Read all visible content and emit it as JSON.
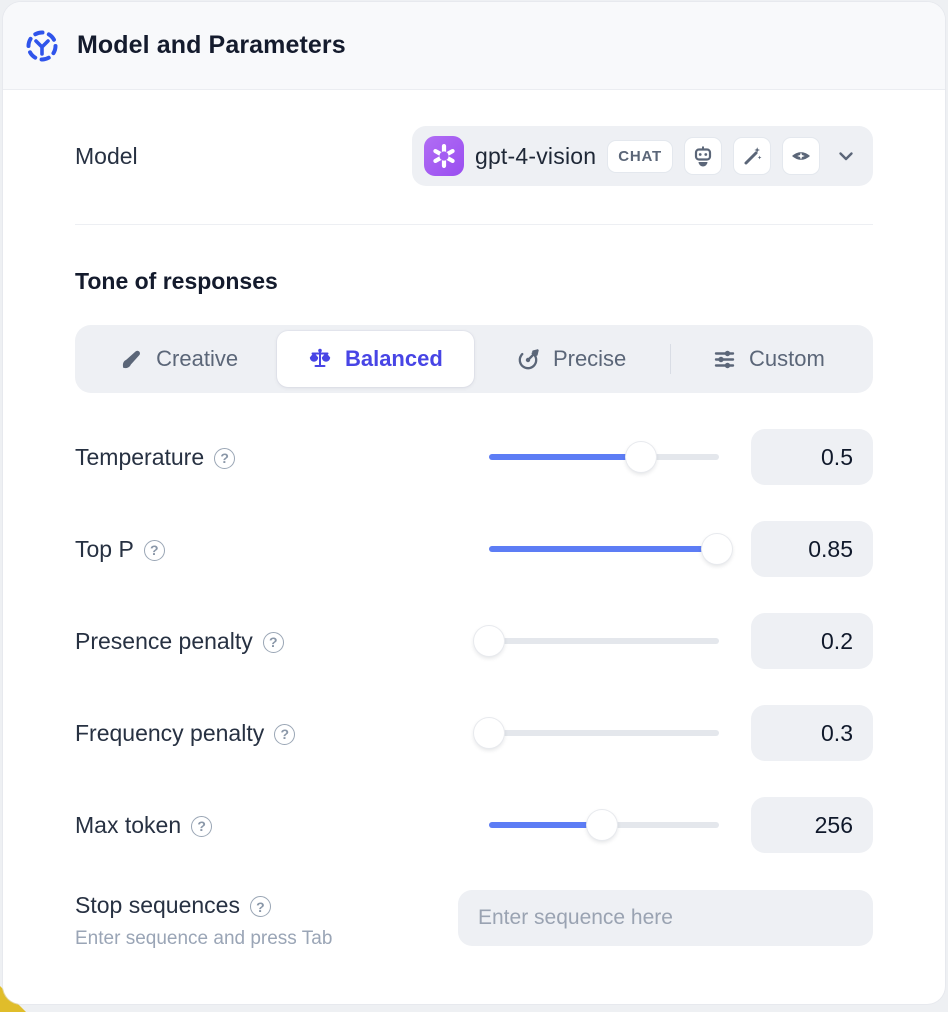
{
  "header": {
    "title": "Model and Parameters"
  },
  "model": {
    "label": "Model",
    "name": "gpt-4-vision",
    "type_badge": "CHAT",
    "capability_icons": [
      "robot-icon",
      "magic-wand-icon",
      "vision-eye-icon"
    ],
    "provider_icon": "openai-logo"
  },
  "tone": {
    "heading": "Tone of responses",
    "options": [
      {
        "label": "Creative",
        "icon": "paintbrush-icon",
        "selected": false
      },
      {
        "label": "Balanced",
        "icon": "balance-scale-icon",
        "selected": true
      },
      {
        "label": "Precise",
        "icon": "target-icon",
        "selected": false
      },
      {
        "label": "Custom",
        "icon": "sliders-icon",
        "selected": false
      }
    ]
  },
  "parameters": [
    {
      "label": "Temperature",
      "value": "0.5",
      "fill": 66
    },
    {
      "label": "Top P",
      "value": "0.85",
      "fill": 99
    },
    {
      "label": "Presence penalty",
      "value": "0.2",
      "fill": 0
    },
    {
      "label": "Frequency penalty",
      "value": "0.3",
      "fill": 0
    },
    {
      "label": "Max token",
      "value": "256",
      "fill": 49
    }
  ],
  "help_glyph": "?",
  "stop": {
    "label": "Stop sequences",
    "helper": "Enter sequence and press Tab",
    "placeholder": "Enter sequence here"
  },
  "colors": {
    "accent_indigo": "#4845e5",
    "slider_blue": "#5d7df5",
    "header_icon_blue": "#2f54eb",
    "provider_purple": "#a45df2",
    "corner_yellow": "#e0bd2a",
    "field_gray": "#eef0f4"
  }
}
